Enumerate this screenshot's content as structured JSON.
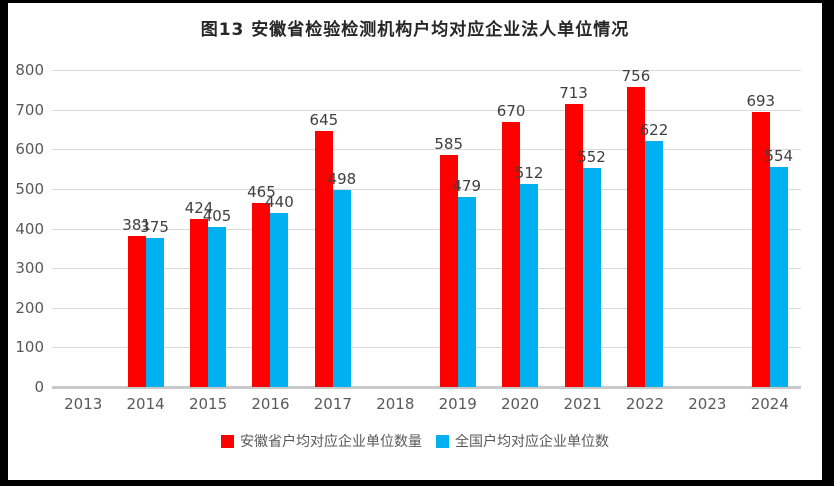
{
  "colors": {
    "anhui_red": "#FF0000",
    "national_blue": "#00B0F0",
    "gridline": "#D9D9D9",
    "axis_line": "#C9C9C9",
    "tick_text": "#595959",
    "value_text": "#404040",
    "title_text": "#262626",
    "frame_border": "#000000"
  },
  "chart_data": {
    "type": "bar",
    "title": "图13 安徽省检验检测机构户均对应企业法人单位情况",
    "xlabel": "",
    "ylabel": "",
    "categories": [
      "2013",
      "2014",
      "2015",
      "2016",
      "2017",
      "2018",
      "2019",
      "2020",
      "2021",
      "2022",
      "2023",
      "2024"
    ],
    "series": [
      {
        "name": "安徽省户均对应企业单位数量",
        "color": "#FF0000",
        "values": [
          null,
          381,
          424,
          465,
          645,
          null,
          585,
          670,
          713,
          756,
          null,
          693
        ]
      },
      {
        "name": "全国户均对应企业单位数",
        "color": "#00B0F0",
        "values": [
          null,
          375,
          405,
          440,
          498,
          null,
          479,
          512,
          552,
          622,
          null,
          554
        ]
      }
    ],
    "ylim": [
      0,
      800
    ],
    "yticks": [
      0,
      100,
      200,
      300,
      400,
      500,
      600,
      700,
      800
    ],
    "grid": true,
    "data_labels": true,
    "legend_position": "bottom"
  }
}
